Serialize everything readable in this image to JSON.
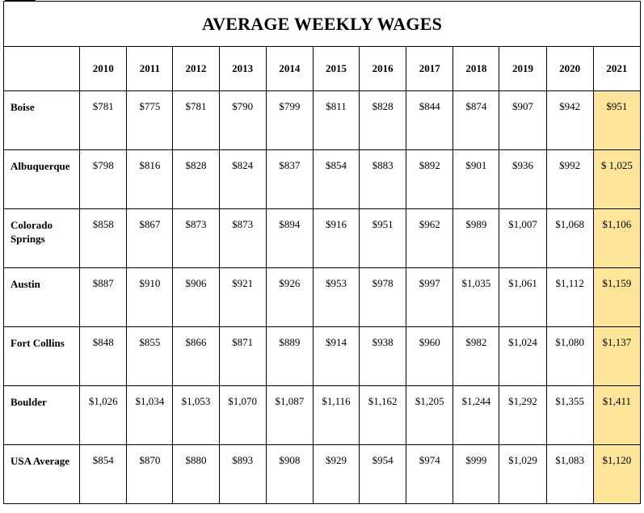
{
  "title": "AVERAGE WEEKLY WAGES",
  "highlight_color": "#ffe599",
  "years": [
    "2010",
    "2011",
    "2012",
    "2013",
    "2014",
    "2015",
    "2016",
    "2017",
    "2018",
    "2019",
    "2020",
    "2021"
  ],
  "rows": [
    {
      "city": "Boise",
      "values": [
        "$781",
        "$775",
        "$781",
        "$790",
        "$799",
        "$811",
        "$828",
        "$844",
        "$874",
        "$907",
        "$942",
        "$951"
      ]
    },
    {
      "city": "Albuquerque",
      "values": [
        "$798",
        "$816",
        "$828",
        "$824",
        "$837",
        "$854",
        "$883",
        "$892",
        "$901",
        "$936",
        "$992",
        "$ 1,025"
      ]
    },
    {
      "city": "Colorado Springs",
      "values": [
        "$858",
        "$867",
        "$873",
        "$873",
        "$894",
        "$916",
        "$951",
        "$962",
        "$989",
        "$1,007",
        "$1,068",
        "$1,106"
      ]
    },
    {
      "city": "Austin",
      "values": [
        "$887",
        "$910",
        "$906",
        "$921",
        "$926",
        "$953",
        "$978",
        "$997",
        "$1,035",
        "$1,061",
        "$1,112",
        "$1,159"
      ]
    },
    {
      "city": "Fort Collins",
      "values": [
        "$848",
        "$855",
        "$866",
        "$871",
        "$889",
        "$914",
        "$938",
        "$960",
        "$982",
        "$1,024",
        "$1,080",
        "$1,137"
      ]
    },
    {
      "city": "Boulder",
      "values": [
        "$1,026",
        "$1,034",
        "$1,053",
        "$1,070",
        "$1,087",
        "$1,116",
        "$1,162",
        "$1,205",
        "$1,244",
        "$1,292",
        "$1,355",
        "$1,411"
      ]
    },
    {
      "city": "USA Average",
      "values": [
        "$854",
        "$870",
        "$880",
        "$893",
        "$908",
        "$929",
        "$954",
        "$974",
        "$999",
        "$1,029",
        "$1,083",
        "$1,120"
      ]
    }
  ]
}
